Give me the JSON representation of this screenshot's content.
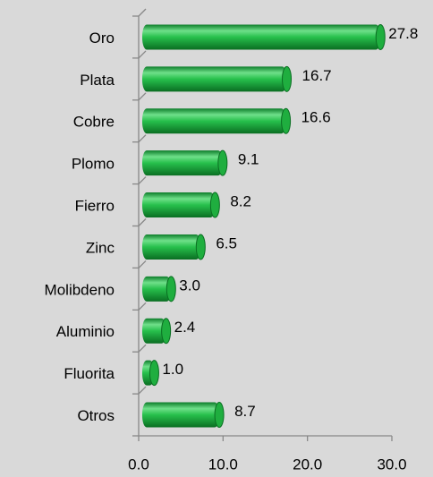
{
  "chart_data": {
    "type": "bar",
    "orientation": "horizontal",
    "categories": [
      "Oro",
      "Plata",
      "Cobre",
      "Plomo",
      "Fierro",
      "Zinc",
      "Molibdeno",
      "Aluminio",
      "Fluorita",
      "Otros"
    ],
    "values": [
      27.8,
      16.7,
      16.6,
      9.1,
      8.2,
      6.5,
      3.0,
      2.4,
      1.0,
      8.7
    ],
    "value_labels": [
      "27.8",
      "16.7",
      "16.6",
      "9.1",
      "8.2",
      "6.5",
      "3.0",
      "2.4",
      "1.0",
      "8.7"
    ],
    "color": "#1fae3f",
    "xlim": [
      0,
      30
    ],
    "xticks": [
      {
        "value": 0,
        "label": "0.0"
      },
      {
        "value": 10,
        "label": "10.0"
      },
      {
        "value": 20,
        "label": "20.0"
      },
      {
        "value": 30,
        "label": "30.0"
      }
    ]
  }
}
